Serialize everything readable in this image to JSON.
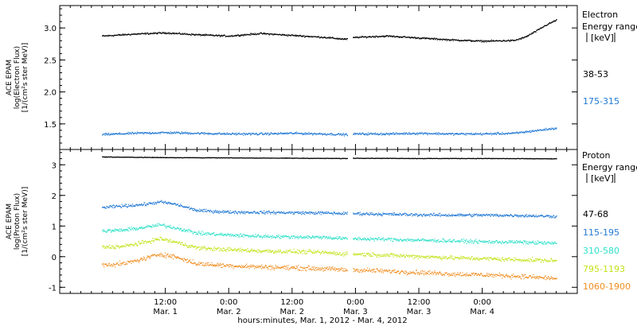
{
  "chart_data": [
    {
      "type": "scatter",
      "panel": "electron",
      "ylabel": [
        "ACE EPAM",
        "log(Electron Flux)",
        "[1/(cm²s ster MeV)]"
      ],
      "legend_title": [
        "Electron",
        "Energy range",
        "[keV]"
      ],
      "ylim": [
        1.1,
        3.35
      ],
      "yticks": [
        "1.5",
        "2.0",
        "2.5",
        "3.0"
      ],
      "ytick_values": [
        1.5,
        2.0,
        2.5,
        3.0
      ],
      "grid": false,
      "legend_placement": "right",
      "series": [
        {
          "name": "38-53",
          "color": "#000000",
          "x": [
            0,
            6,
            12,
            18,
            24,
            30,
            36,
            42,
            46,
            48,
            54,
            60,
            66,
            72,
            78,
            80,
            82,
            84,
            86
          ],
          "values": [
            2.88,
            2.91,
            2.93,
            2.9,
            2.88,
            2.92,
            2.89,
            2.86,
            2.83,
            2.86,
            2.88,
            2.85,
            2.82,
            2.8,
            2.81,
            2.86,
            2.95,
            3.05,
            3.13
          ]
        },
        {
          "name": "175-315",
          "color": "#1f77d4",
          "x": [
            0,
            6,
            12,
            18,
            24,
            30,
            36,
            42,
            46,
            48,
            54,
            60,
            66,
            72,
            78,
            82,
            86
          ],
          "values": [
            1.34,
            1.36,
            1.37,
            1.36,
            1.35,
            1.35,
            1.36,
            1.35,
            1.34,
            1.35,
            1.35,
            1.36,
            1.35,
            1.35,
            1.36,
            1.4,
            1.44
          ]
        }
      ]
    },
    {
      "type": "scatter",
      "panel": "proton",
      "ylabel": [
        "ACE EPAM",
        "log(Proton Flux)",
        "[1/(cm²s ster MeV)]"
      ],
      "legend_title": [
        "Proton",
        "Energy range",
        "[keV]"
      ],
      "ylim": [
        -1.2,
        3.5
      ],
      "yticks": [
        "-1",
        "0",
        "1",
        "2",
        "3"
      ],
      "ytick_values": [
        -1,
        0,
        1,
        2,
        3
      ],
      "grid": false,
      "legend_placement": "right",
      "series": [
        {
          "name": "47-68",
          "color": "#000000",
          "x": [
            0,
            12,
            24,
            36,
            46,
            48,
            60,
            72,
            86
          ],
          "values": [
            3.27,
            3.25,
            3.24,
            3.23,
            3.22,
            3.23,
            3.22,
            3.22,
            3.21
          ]
        },
        {
          "name": "115-195",
          "color": "#1f77d4",
          "x": [
            0,
            4,
            8,
            11,
            14,
            18,
            24,
            30,
            36,
            42,
            46,
            48,
            54,
            60,
            66,
            72,
            78,
            86
          ],
          "values": [
            1.62,
            1.67,
            1.72,
            1.8,
            1.72,
            1.52,
            1.47,
            1.46,
            1.45,
            1.44,
            1.42,
            1.42,
            1.4,
            1.38,
            1.37,
            1.37,
            1.36,
            1.33
          ]
        },
        {
          "name": "310-580",
          "color": "#2ee0c8",
          "x": [
            0,
            4,
            8,
            11,
            14,
            18,
            24,
            30,
            36,
            42,
            46,
            48,
            54,
            60,
            66,
            72,
            78,
            86
          ],
          "values": [
            0.85,
            0.88,
            0.97,
            1.05,
            0.95,
            0.78,
            0.72,
            0.68,
            0.66,
            0.65,
            0.6,
            0.6,
            0.58,
            0.55,
            0.53,
            0.5,
            0.49,
            0.45
          ]
        },
        {
          "name": "795-1193",
          "color": "#c4e21a",
          "x": [
            0,
            4,
            8,
            11,
            14,
            18,
            24,
            30,
            36,
            42,
            46,
            48,
            54,
            60,
            66,
            72,
            78,
            86
          ],
          "values": [
            0.32,
            0.35,
            0.48,
            0.6,
            0.48,
            0.3,
            0.24,
            0.2,
            0.18,
            0.15,
            0.1,
            0.1,
            0.06,
            0.02,
            -0.02,
            -0.05,
            -0.08,
            -0.12
          ]
        },
        {
          "name": "1060-1900",
          "color": "#f08c1e",
          "x": [
            0,
            4,
            8,
            11,
            14,
            18,
            24,
            30,
            36,
            42,
            46,
            48,
            54,
            60,
            66,
            72,
            78,
            86
          ],
          "values": [
            -0.25,
            -0.22,
            -0.05,
            0.1,
            0.0,
            -0.22,
            -0.28,
            -0.32,
            -0.35,
            -0.38,
            -0.42,
            -0.42,
            -0.46,
            -0.5,
            -0.55,
            -0.58,
            -0.62,
            -0.7
          ]
        }
      ]
    }
  ],
  "x_axis": {
    "label": "hours:minutes, Mar.  1, 2012 - Mar.  4, 2012",
    "xlim": [
      -8,
      90
    ],
    "major_ticks": [
      {
        "x": 12,
        "time": "12:00",
        "day": "Mar. 1"
      },
      {
        "x": 24,
        "time": "0:00",
        "day": "Mar. 2"
      },
      {
        "x": 36,
        "time": "12:00",
        "day": "Mar. 2"
      },
      {
        "x": 48,
        "time": "0:00",
        "day": "Mar. 3"
      },
      {
        "x": 60,
        "time": "12:00",
        "day": "Mar. 3"
      },
      {
        "x": 72,
        "time": "0:00",
        "day": "Mar. 4"
      }
    ],
    "minor_step_hours": 2,
    "data_gap": [
      46.5,
      47.5
    ]
  }
}
